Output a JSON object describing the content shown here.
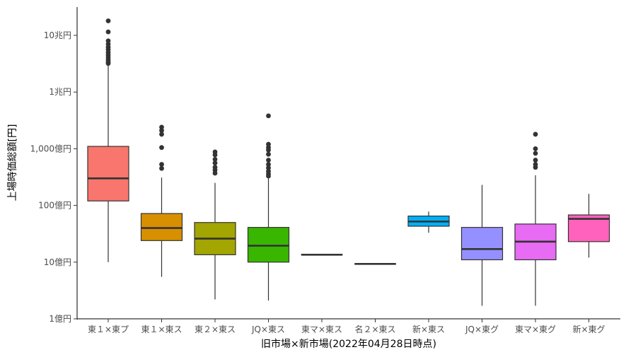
{
  "chart_data": {
    "type": "boxplot",
    "title": "",
    "xlabel": "旧市場×新市場(2022年04月28日時点)",
    "ylabel": "上場時価総額[円]",
    "y_scale": "log10",
    "ylim": [
      100000000.0,
      30000000000000.0
    ],
    "y_ticks": [
      {
        "value": 100000000.0,
        "label": "1億円"
      },
      {
        "value": 1000000000.0,
        "label": "10億円"
      },
      {
        "value": 10000000000.0,
        "label": "100億円"
      },
      {
        "value": 100000000000.0,
        "label": "1,000億円"
      },
      {
        "value": 1000000000000.0,
        "label": "1兆円"
      },
      {
        "value": 10000000000000.0,
        "label": "10兆円"
      }
    ],
    "grid": false,
    "legend": "none",
    "categories": [
      "東１×東プ",
      "東１×東ス",
      "東２×東ス",
      "JQ×東ス",
      "東マ×東ス",
      "名２×東ス",
      "新×東ス",
      "JQ×東グ",
      "東マ×東グ",
      "新×東グ"
    ],
    "series": [
      {
        "category": "東１×東プ",
        "color": "#F8766D",
        "whisker_low": 1000000000.0,
        "q1": 12000000000.0,
        "median": 30000000000.0,
        "q3": 110000000000.0,
        "whisker_high": 3000000000000.0,
        "outliers": [
          18000000000000.0,
          11500000000000.0,
          8000000000000.0,
          7000000000000.0,
          6200000000000.0,
          5600000000000.0,
          5000000000000.0,
          4500000000000.0,
          4100000000000.0,
          3700000000000.0,
          3400000000000.0,
          3200000000000.0
        ]
      },
      {
        "category": "東１×東ス",
        "color": "#D89000",
        "whisker_low": 550000000.0,
        "q1": 2400000000.0,
        "median": 4000000000.0,
        "q3": 7200000000.0,
        "whisker_high": 31000000000.0,
        "outliers": [
          240000000000.0,
          210000000000.0,
          180000000000.0,
          105000000000.0,
          53000000000.0,
          45000000000.0
        ]
      },
      {
        "category": "東２×東ス",
        "color": "#A3A500",
        "whisker_low": 220000000.0,
        "q1": 1350000000.0,
        "median": 2600000000.0,
        "q3": 5000000000.0,
        "whisker_high": 25000000000.0,
        "outliers": [
          88000000000.0,
          78000000000.0,
          65000000000.0,
          56000000000.0,
          47000000000.0,
          42000000000.0,
          37000000000.0
        ]
      },
      {
        "category": "JQ×東ス",
        "color": "#39B600",
        "whisker_low": 210000000.0,
        "q1": 1000000000.0,
        "median": 1950000000.0,
        "q3": 4100000000.0,
        "whisker_high": 30000000000.0,
        "outliers": [
          380000000000.0,
          120000000000.0,
          105000000000.0,
          95000000000.0,
          80000000000.0,
          63000000000.0,
          53000000000.0,
          46000000000.0,
          40000000000.0,
          36000000000.0,
          33000000000.0
        ]
      },
      {
        "category": "東マ×東ス",
        "color": "#00BF7D",
        "whisker_low": 1350000000.0,
        "q1": 1350000000.0,
        "median": 1350000000.0,
        "q3": 1350000000.0,
        "whisker_high": 1350000000.0,
        "outliers": []
      },
      {
        "category": "名２×東ス",
        "color": "#00BFC4",
        "whisker_low": 930000000.0,
        "q1": 930000000.0,
        "median": 930000000.0,
        "q3": 930000000.0,
        "whisker_high": 930000000.0,
        "outliers": []
      },
      {
        "category": "新×東ス",
        "color": "#00B0F6",
        "whisker_low": 3300000000.0,
        "q1": 4300000000.0,
        "median": 5200000000.0,
        "q3": 6500000000.0,
        "whisker_high": 7800000000.0,
        "outliers": []
      },
      {
        "category": "JQ×東グ",
        "color": "#9590FF",
        "whisker_low": 170000000.0,
        "q1": 1100000000.0,
        "median": 1700000000.0,
        "q3": 4100000000.0,
        "whisker_high": 23000000000.0,
        "outliers": []
      },
      {
        "category": "東マ×東グ",
        "color": "#E76BF3",
        "whisker_low": 170000000.0,
        "q1": 1100000000.0,
        "median": 2300000000.0,
        "q3": 4700000000.0,
        "whisker_high": 34000000000.0,
        "outliers": [
          180000000000.0,
          100000000000.0,
          83000000000.0,
          63000000000.0,
          53000000000.0,
          47000000000.0
        ]
      },
      {
        "category": "新×東グ",
        "color": "#FF62BC",
        "whisker_low": 1200000000.0,
        "q1": 2300000000.0,
        "median": 5800000000.0,
        "q3": 6800000000.0,
        "whisker_high": 16000000000.0,
        "outliers": []
      }
    ]
  }
}
